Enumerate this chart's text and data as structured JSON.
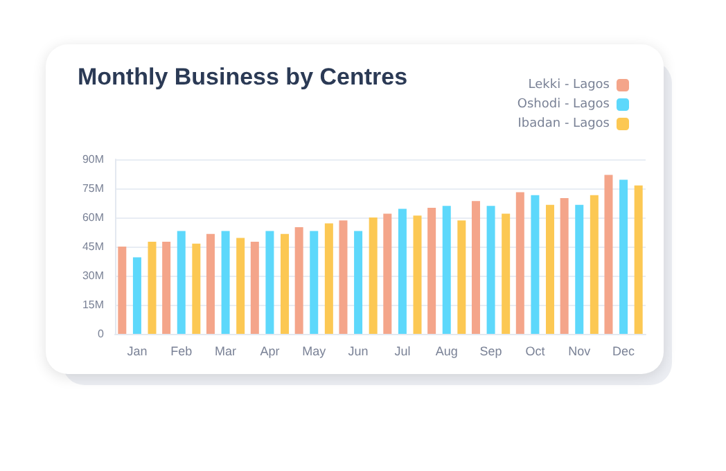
{
  "chart_data": {
    "type": "bar",
    "title": "Monthly Business by Centres",
    "categories": [
      "Jan",
      "Feb",
      "Mar",
      "Apr",
      "May",
      "Jun",
      "Jul",
      "Aug",
      "Sep",
      "Oct",
      "Nov",
      "Dec"
    ],
    "series": [
      {
        "name": "Lekki - Lagos",
        "color": "#f4a58a",
        "values": [
          45,
          47.5,
          51.5,
          47.5,
          55,
          58.5,
          62,
          65,
          68.5,
          73,
          70,
          82
        ]
      },
      {
        "name": "Oshodi - Lagos",
        "color": "#5dd8fb",
        "values": [
          39.5,
          53,
          53,
          53,
          53,
          53,
          64.5,
          66,
          66,
          71.5,
          66.5,
          79.5
        ]
      },
      {
        "name": "Ibadan - Lagos",
        "color": "#fcc853",
        "values": [
          47.5,
          46.5,
          49.5,
          51.5,
          57,
          60,
          61,
          58.5,
          62,
          66.5,
          71.5,
          76.5
        ]
      }
    ],
    "ylim": [
      0,
      90
    ],
    "yticks": [
      0,
      {
        "value": 15,
        "label": "15M"
      },
      {
        "value": 30,
        "label": "30M"
      },
      {
        "value": 45,
        "label": "45M"
      },
      {
        "value": 60,
        "label": "60M"
      },
      {
        "value": 75,
        "label": "75M"
      },
      {
        "value": 90,
        "label": "90M"
      }
    ],
    "grid": "y",
    "legend": "top right"
  }
}
